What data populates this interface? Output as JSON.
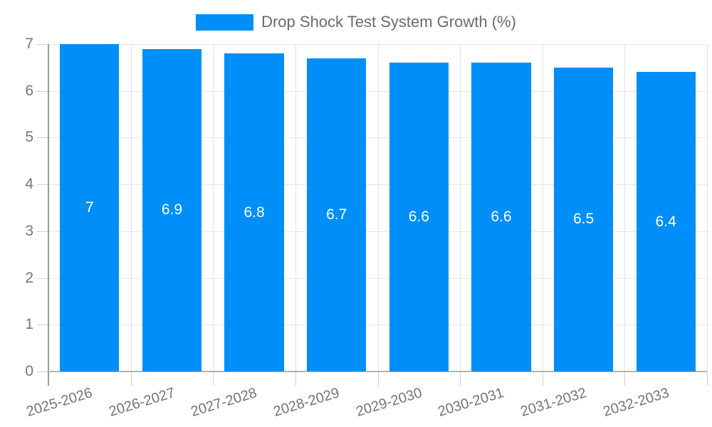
{
  "chart_data": {
    "type": "bar",
    "title": "Drop Shock Test System Growth (%)",
    "series_name": "Drop Shock Test System Growth (%)",
    "categories": [
      "2025-2026",
      "2026-2027",
      "2027-2028",
      "2028-2029",
      "2029-2030",
      "2030-2031",
      "2031-2032",
      "2032-2033"
    ],
    "values": [
      7,
      6.9,
      6.8,
      6.7,
      6.6,
      6.6,
      6.5,
      6.4
    ],
    "data_labels": [
      "7",
      "6.9",
      "6.8",
      "6.7",
      "6.6",
      "6.6",
      "6.5",
      "6.4"
    ],
    "xlabel": "",
    "ylabel": "",
    "ylim": [
      0,
      7
    ],
    "yticks": [
      0,
      1,
      2,
      3,
      4,
      5,
      6,
      7
    ],
    "grid": "on",
    "legend_position": "top-center",
    "colors": {
      "bar": "#008FF8",
      "data_label": "#ffffff",
      "axis_label": "#757575",
      "legend_text": "#6b6b6b",
      "gridline": "#e6e6e6",
      "vertical_gridline": "#e2e2e2",
      "axis_line": "#9a9a9a",
      "baseline": "#b3b3b3"
    }
  }
}
